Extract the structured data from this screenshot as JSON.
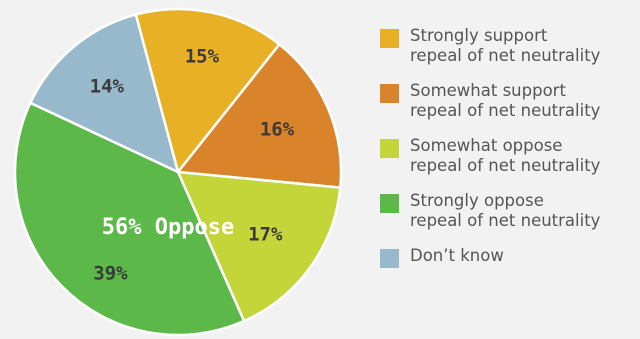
{
  "chart_data": {
    "type": "pie",
    "categories": [
      "Strongly support\nrepeal of net neutrality",
      "Somewhat support\nrepeal of net neutrality",
      "Somewhat oppose\nrepeal of net neutrality",
      "Strongly oppose\nrepeal of net neutrality",
      "Don’t know"
    ],
    "values": [
      15,
      16,
      17,
      39,
      14
    ],
    "data_labels": [
      "15%",
      "16%",
      "17%",
      "39%",
      "14%"
    ],
    "colors": [
      "#e8b025",
      "#d9832b",
      "#c4d53a",
      "#5cb848",
      "#98b9cb"
    ],
    "annotation": "56% Oppose",
    "legend_position": "right",
    "title": "",
    "xlabel": "",
    "ylabel": ""
  }
}
